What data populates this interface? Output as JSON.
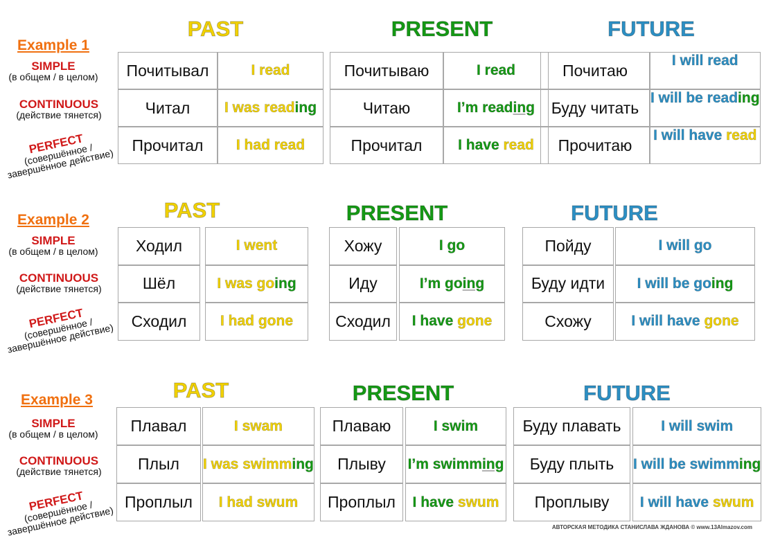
{
  "colors": {
    "past": "#f2d200",
    "present": "#149a14",
    "future": "#2b8fc4",
    "example": "#f07010",
    "tense_label": "#d01818"
  },
  "headers": {
    "past": "PAST",
    "present": "PRESENT",
    "future": "FUTURE"
  },
  "row_labels": [
    {
      "title": "SIMPLE",
      "note": "(в общем / в целом)"
    },
    {
      "title": "CONTINUOUS",
      "note": "(действие тянется)"
    },
    {
      "title": "PERFECT",
      "note": "(совершённое /",
      "note2": "завершённое действие)"
    }
  ],
  "examples": [
    {
      "title": "Example 1",
      "past": {
        "ru": [
          "Почитывал",
          "Читал",
          "Прочитал"
        ],
        "en": [
          [
            {
              "t": "I read",
              "c": "past"
            }
          ],
          [
            {
              "t": "I was read",
              "c": "past"
            },
            {
              "t": "ing",
              "c": "present"
            }
          ],
          [
            {
              "t": "I had read",
              "c": "past"
            }
          ]
        ]
      },
      "present": {
        "ru": [
          "Почитываю",
          "Читаю",
          "Прочитал"
        ],
        "en": [
          [
            {
              "t": "I read",
              "c": "present"
            }
          ],
          [
            {
              "t": "I’m read",
              "c": "present"
            },
            {
              "t": "ing",
              "c": "present",
              "u": true
            }
          ],
          [
            {
              "t": "I have ",
              "c": "present"
            },
            {
              "t": "read",
              "c": "past"
            }
          ]
        ]
      },
      "future": {
        "ru": [
          "Почитаю",
          "Буду читать",
          "Прочитаю"
        ],
        "en": [
          [
            {
              "t": "I will read",
              "c": "future"
            }
          ],
          [
            {
              "t": "I will be read",
              "c": "future"
            },
            {
              "t": "ing",
              "c": "present"
            }
          ],
          [
            {
              "t": "I will have ",
              "c": "future"
            },
            {
              "t": "read",
              "c": "past"
            }
          ]
        ]
      }
    },
    {
      "title": "Example 2",
      "past": {
        "ru": [
          "Ходил",
          "Шёл",
          "Сходил"
        ],
        "en": [
          [
            {
              "t": "I went",
              "c": "past"
            }
          ],
          [
            {
              "t": "I was go",
              "c": "past"
            },
            {
              "t": "ing",
              "c": "present"
            }
          ],
          [
            {
              "t": "I had gone",
              "c": "past"
            }
          ]
        ]
      },
      "present": {
        "ru": [
          "Хожу",
          "Иду",
          "Сходил"
        ],
        "en": [
          [
            {
              "t": "I go",
              "c": "present"
            }
          ],
          [
            {
              "t": "I’m go",
              "c": "present"
            },
            {
              "t": "ing",
              "c": "present",
              "u": true
            }
          ],
          [
            {
              "t": "I have ",
              "c": "present"
            },
            {
              "t": "gone",
              "c": "past"
            }
          ]
        ]
      },
      "future": {
        "ru": [
          "Пойду",
          "Буду идти",
          "Схожу"
        ],
        "en": [
          [
            {
              "t": "I will go",
              "c": "future"
            }
          ],
          [
            {
              "t": "I will be go",
              "c": "future"
            },
            {
              "t": "ing",
              "c": "present"
            }
          ],
          [
            {
              "t": "I will have ",
              "c": "future"
            },
            {
              "t": "gone",
              "c": "past"
            }
          ]
        ]
      }
    },
    {
      "title": "Example 3",
      "past": {
        "ru": [
          "Плавал",
          "Плыл",
          "Проплыл"
        ],
        "en": [
          [
            {
              "t": "I swam",
              "c": "past"
            }
          ],
          [
            {
              "t": "I was swimm",
              "c": "past"
            },
            {
              "t": "ing",
              "c": "present"
            }
          ],
          [
            {
              "t": "I had swum",
              "c": "past"
            }
          ]
        ]
      },
      "present": {
        "ru": [
          "Плаваю",
          "Плыву",
          "Проплыл"
        ],
        "en": [
          [
            {
              "t": "I swim",
              "c": "present"
            }
          ],
          [
            {
              "t": "I’m swimm",
              "c": "present"
            },
            {
              "t": "ing",
              "c": "present",
              "u": true
            }
          ],
          [
            {
              "t": "I have ",
              "c": "present"
            },
            {
              "t": "swum",
              "c": "past"
            }
          ]
        ]
      },
      "future": {
        "ru": [
          "Буду плавать",
          "Буду плыть",
          "Проплыву"
        ],
        "en": [
          [
            {
              "t": "I will swim",
              "c": "future"
            }
          ],
          [
            {
              "t": "I will be swimm",
              "c": "future"
            },
            {
              "t": "ing",
              "c": "present"
            }
          ],
          [
            {
              "t": "I will have ",
              "c": "future"
            },
            {
              "t": "swum",
              "c": "past"
            }
          ]
        ]
      }
    }
  ],
  "footer": {
    "text": "АВТОРСКАЯ МЕТОДИКА СТАНИСЛАВА ЖДАНОВА",
    "copyright": "©",
    "site": "www.13Almazov.com"
  }
}
